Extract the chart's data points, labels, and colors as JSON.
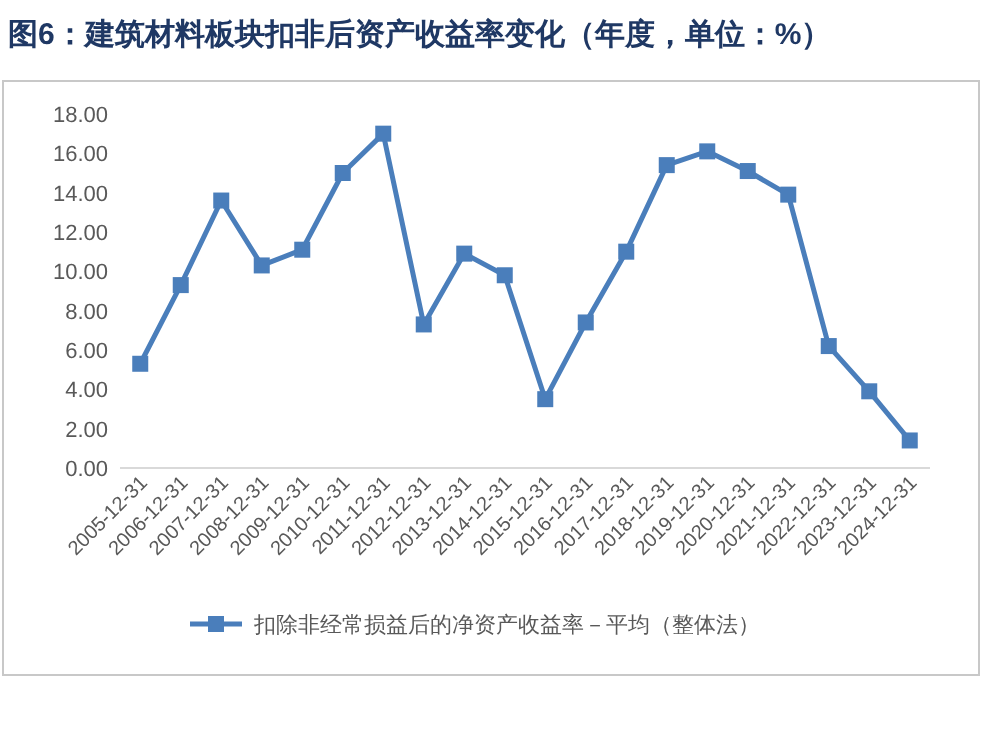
{
  "chart_data": {
    "type": "line",
    "title": "图6：建筑材料板块扣非后资产收益率变化（年度，单位：%）",
    "categories": [
      "2005-12-31",
      "2006-12-31",
      "2007-12-31",
      "2008-12-31",
      "2009-12-31",
      "2010-12-31",
      "2011-12-31",
      "2012-12-31",
      "2013-12-31",
      "2014-12-31",
      "2015-12-31",
      "2016-12-31",
      "2017-12-31",
      "2018-12-31",
      "2019-12-31",
      "2020-12-31",
      "2021-12-31",
      "2022-12-31",
      "2023-12-31",
      "2024-12-31"
    ],
    "series": [
      {
        "name": "扣除非经常损益后的净资产收益率－平均（整体法）",
        "color": "#4a7ebb",
        "values": [
          5.3,
          9.3,
          13.6,
          10.3,
          11.1,
          15.0,
          17.0,
          7.3,
          10.9,
          9.8,
          3.5,
          7.4,
          11.0,
          15.4,
          16.1,
          15.1,
          13.9,
          6.2,
          3.9,
          1.4
        ]
      }
    ],
    "ylim": [
      0,
      18
    ],
    "yticks": [
      {
        "value": 0,
        "label": "0.00"
      },
      {
        "value": 2,
        "label": "2.00"
      },
      {
        "value": 4,
        "label": "4.00"
      },
      {
        "value": 6,
        "label": "6.00"
      },
      {
        "value": 8,
        "label": "8.00"
      },
      {
        "value": 10,
        "label": "10.00"
      },
      {
        "value": 12,
        "label": "12.00"
      },
      {
        "value": 14,
        "label": "14.00"
      },
      {
        "value": 16,
        "label": "16.00"
      },
      {
        "value": 18,
        "label": "18.00"
      }
    ],
    "grid": false,
    "legend": "bottom",
    "marker": "square",
    "line_style": "solid"
  }
}
